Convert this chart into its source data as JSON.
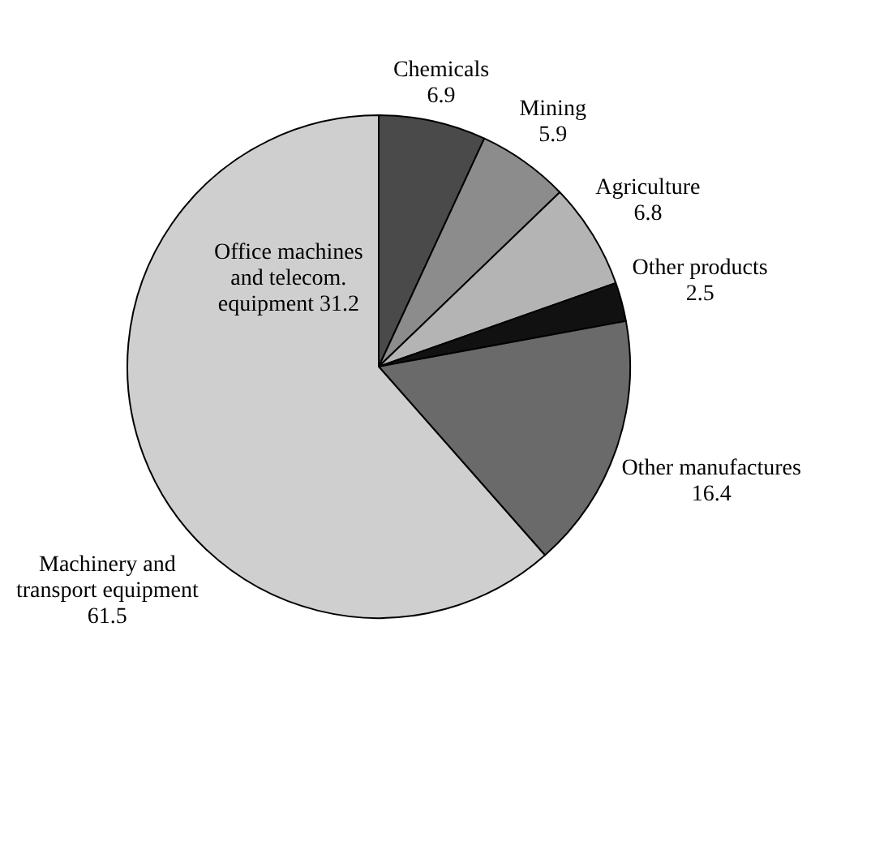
{
  "chart_data": {
    "type": "pie",
    "categories": [
      "Chemicals",
      "Mining",
      "Agriculture",
      "Other products",
      "Other manufactures",
      "Machinery and transport equipment"
    ],
    "values": [
      6.9,
      5.9,
      6.8,
      2.5,
      16.4,
      61.5
    ],
    "colors": [
      "#4a4a4a",
      "#8c8c8c",
      "#b4b4b4",
      "#111111",
      "#6a6a6a",
      "#cfcfcf"
    ],
    "annotations": [
      "Office machines and telecom. equipment 31.2"
    ],
    "data_labels": true
  }
}
